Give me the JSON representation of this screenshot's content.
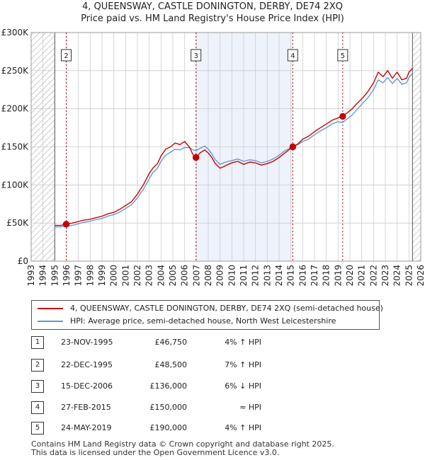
{
  "header": {
    "title_line1": "4, QUEENSWAY, CASTLE DONINGTON, DERBY, DE74 2XQ",
    "title_line2": "Price paid vs. HM Land Registry's House Price Index (HPI)"
  },
  "colors": {
    "price_line": "#cc0000",
    "hpi_line": "#6699cc",
    "marker": "#cc0000",
    "vline": "#cc0000",
    "shade": "#eef2fb",
    "hatch": "#999999",
    "grid": "#cccccc"
  },
  "chart_data": {
    "type": "line",
    "title": "4, QUEENSWAY, CASTLE DONINGTON, DERBY, DE74 2XQ — Price paid vs. HM Land Registry's House Price Index (HPI)",
    "xlabel": "",
    "ylabel": "",
    "xlim": [
      1993,
      2026
    ],
    "ylim": [
      0,
      300000
    ],
    "x_ticks": [
      "1993",
      "1994",
      "1995",
      "1996",
      "1997",
      "1998",
      "1999",
      "2000",
      "2001",
      "2002",
      "2003",
      "2004",
      "2005",
      "2006",
      "2007",
      "2008",
      "2009",
      "2010",
      "2011",
      "2012",
      "2013",
      "2014",
      "2015",
      "2016",
      "2017",
      "2018",
      "2019",
      "2020",
      "2021",
      "2022",
      "2023",
      "2024",
      "2025",
      "2026"
    ],
    "y_ticks": [
      {
        "value": 0,
        "label": "£0"
      },
      {
        "value": 50000,
        "label": "£50K"
      },
      {
        "value": 100000,
        "label": "£100K"
      },
      {
        "value": 150000,
        "label": "£150K"
      },
      {
        "value": 200000,
        "label": "£200K"
      },
      {
        "value": 250000,
        "label": "£250K"
      },
      {
        "value": 300000,
        "label": "£300K"
      }
    ],
    "grid": true,
    "series": [
      {
        "name": "4, QUEENSWAY, CASTLE DONINGTON, DERBY, DE74 2XQ (semi-detached house)",
        "color": "#cc0000",
        "x": [
          1995.0,
          1995.5,
          1995.9,
          1996.5,
          1997,
          1997.5,
          1998,
          1998.5,
          1999,
          1999.5,
          2000,
          2000.5,
          2001,
          2001.5,
          2002,
          2002.5,
          2003,
          2003.3,
          2003.7,
          2004,
          2004.4,
          2004.8,
          2005.2,
          2005.6,
          2006.0,
          2006.4,
          2006.7,
          2006.96,
          2007.3,
          2007.7,
          2008.0,
          2008.3,
          2008.6,
          2009.0,
          2009.3,
          2009.7,
          2010.0,
          2010.5,
          2011,
          2011.5,
          2012,
          2012.5,
          2013,
          2013.5,
          2014,
          2014.5,
          2015.16,
          2015.6,
          2016,
          2016.5,
          2017,
          2017.5,
          2018,
          2018.5,
          2019.0,
          2019.39,
          2019.8,
          2020.2,
          2020.6,
          2021,
          2021.5,
          2022,
          2022.4,
          2022.8,
          2023.2,
          2023.6,
          2024,
          2024.4,
          2024.8,
          2025.0,
          2025.3
        ],
        "y": [
          47000,
          46800,
          48500,
          50000,
          52000,
          54000,
          55000,
          57000,
          59000,
          62000,
          64000,
          68000,
          73000,
          78000,
          88000,
          100000,
          115000,
          122000,
          128000,
          138000,
          147000,
          150000,
          155000,
          153000,
          157000,
          150000,
          140000,
          136000,
          142000,
          146000,
          142000,
          136000,
          128000,
          122000,
          124000,
          127000,
          129000,
          131000,
          127000,
          130000,
          129000,
          126000,
          128000,
          131000,
          136000,
          142000,
          150000,
          154000,
          160000,
          164000,
          170000,
          175000,
          180000,
          185000,
          188000,
          190000,
          195000,
          200000,
          207000,
          213000,
          222000,
          234000,
          248000,
          242000,
          250000,
          240000,
          248000,
          238000,
          240000,
          248000,
          253000
        ]
      },
      {
        "name": "HPI: Average price, semi-detached house, North West Leicestershire",
        "color": "#6699cc",
        "x": [
          1995.0,
          1995.5,
          1995.9,
          1996.5,
          1997,
          1997.5,
          1998,
          1998.5,
          1999,
          1999.5,
          2000,
          2000.5,
          2001,
          2001.5,
          2002,
          2002.5,
          2003,
          2003.3,
          2003.7,
          2004,
          2004.4,
          2004.8,
          2005.2,
          2005.6,
          2006.0,
          2006.4,
          2006.7,
          2006.96,
          2007.3,
          2007.7,
          2008.0,
          2008.3,
          2008.6,
          2009.0,
          2009.3,
          2009.7,
          2010.0,
          2010.5,
          2011,
          2011.5,
          2012,
          2012.5,
          2013,
          2013.5,
          2014,
          2014.5,
          2015.16,
          2015.6,
          2016,
          2016.5,
          2017,
          2017.5,
          2018,
          2018.5,
          2019.0,
          2019.39,
          2019.8,
          2020.2,
          2020.6,
          2021,
          2021.5,
          2022,
          2022.4,
          2022.8,
          2023.2,
          2023.6,
          2024,
          2024.4,
          2024.8,
          2025.0,
          2025.3
        ],
        "y": [
          45000,
          45000,
          45500,
          47000,
          49000,
          51000,
          52500,
          54500,
          56000,
          59000,
          61000,
          64500,
          69000,
          74000,
          83000,
          94000,
          108000,
          116000,
          122000,
          131000,
          139000,
          143000,
          147000,
          146000,
          149000,
          149000,
          146000,
          145000,
          148000,
          151000,
          147000,
          141000,
          133000,
          127000,
          129000,
          131000,
          132000,
          134000,
          131000,
          133000,
          132000,
          129000,
          131000,
          134000,
          139000,
          145000,
          150000,
          153000,
          157000,
          160000,
          166000,
          171000,
          175000,
          180000,
          183000,
          182000,
          187000,
          192000,
          199000,
          206000,
          214000,
          225000,
          238000,
          234000,
          241000,
          233000,
          240000,
          232000,
          234000,
          241000,
          246000
        ]
      }
    ],
    "transactions": [
      {
        "id": "1",
        "date": "23-NOV-1995",
        "x": 1995.9,
        "price_value": 46750,
        "price": "£46,750",
        "relation": "4% ↑ HPI",
        "marker": false,
        "vline": false
      },
      {
        "id": "2",
        "date": "22-DEC-1995",
        "x": 1995.97,
        "price_value": 48500,
        "price": "£48,500",
        "relation": "7% ↑ HPI",
        "marker": true,
        "vline": true
      },
      {
        "id": "3",
        "date": "15-DEC-2006",
        "x": 2006.96,
        "price_value": 136000,
        "price": "£136,000",
        "relation": "6% ↓ HPI",
        "marker": true,
        "vline": true
      },
      {
        "id": "4",
        "date": "27-FEB-2015",
        "x": 2015.16,
        "price_value": 150000,
        "price": "£150,000",
        "relation": "≈ HPI",
        "marker": true,
        "vline": true
      },
      {
        "id": "5",
        "date": "24-MAY-2019",
        "x": 2019.39,
        "price_value": 190000,
        "price": "£190,000",
        "relation": "4% ↑ HPI",
        "marker": true,
        "vline": true
      }
    ],
    "shaded_ranges": [
      [
        2006.96,
        2015.16
      ]
    ],
    "hatched_ranges": [
      [
        1993,
        1995.0
      ],
      [
        2025.3,
        2026
      ]
    ]
  },
  "legend": {
    "items": [
      {
        "label": "4, QUEENSWAY, CASTLE DONINGTON, DERBY, DE74 2XQ (semi-detached house)",
        "color": "#cc0000"
      },
      {
        "label": "HPI: Average price, semi-detached house, North West Leicestershire",
        "color": "#6699cc"
      }
    ]
  },
  "footer": {
    "line1": "Contains HM Land Registry data © Crown copyright and database right 2025.",
    "line2": "This data is licensed under the Open Government Licence v3.0."
  }
}
